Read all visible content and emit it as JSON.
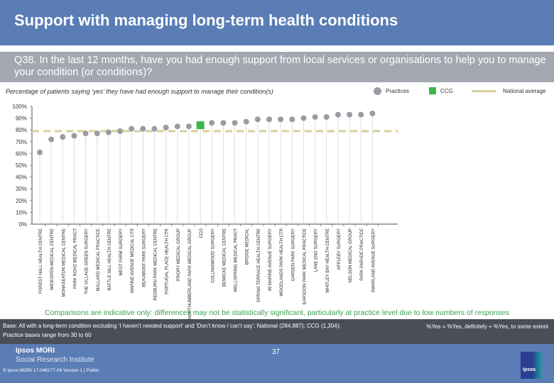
{
  "header": {
    "title": "Support with managing long-term health conditions"
  },
  "question": {
    "text": "Q38. In the last 12 months, have you had enough support from local services or organisations to help you to manage your condition (or conditions)?"
  },
  "subtitle": "Percentage of patients saying ‘yes’ they have had enough support to manage their condition(s)",
  "legend": {
    "practices": "Practices",
    "ccg": "CCG",
    "national": "National average"
  },
  "colors": {
    "practice_dot": "#9a9ca3",
    "ccg": "#3bb54a",
    "national_line": "#d9cf9a",
    "gridline": "#dddddd",
    "axis": "#888888"
  },
  "chart_data": {
    "type": "scatter",
    "title": "Percentage of patients saying ‘yes’ they have had enough support to manage their condition(s)",
    "xlabel": "",
    "ylabel": "",
    "ylim": [
      0,
      100
    ],
    "yticks": [
      "0%",
      "10%",
      "20%",
      "30%",
      "40%",
      "50%",
      "60%",
      "70%",
      "80%",
      "90%",
      "100%"
    ],
    "national_average": 79,
    "categories": [
      "FOREST HALL HEALTH CENTRE",
      "WIDEOPEN MEDICAL CENTRE",
      "MONKSEATON MEDICAL CENTRE",
      "PARK ROAD MEDICAL PRACT",
      "THE VILLAGE GREEN SURGERY",
      "MALLARD MEDICAL PRACTICE",
      "BATTLE HILL HEALTH CENTRE",
      "WEST FARM SURGERY",
      "MARINE AVENUE MEDICAL CTR",
      "BEAUMONT PARK SURGERY",
      "REDBURN PARK MEDICAL CENTRE",
      "PORTUGAL PLACE HEALTH CTR",
      "PRIORY MEDICAL GROUP",
      "NORTHUMBERLAND PARK MEDICAL GROUP",
      "CCG",
      "COLLINGWOOD SURGERY",
      "BEWICKE MEDICAL CENTRE",
      "WELLSPRING MEDICAL PRACT",
      "BRIDGE MEDICAL",
      "SPRING TERRACE HEALTH CENTRE",
      "49 MARINE AVENUE SURGERY",
      "WOODLANDS PARK HEALTH CTR",
      "GARDEN PARK SURGERY",
      "EARSDON PARK MEDICAL PRACTICE",
      "LANE END SURGERY",
      "WHITLEY BAY HEALTH CENTRE",
      "APPLEBY SURGERY",
      "NELSON MEDICAL GROUP",
      "PARK PARADE PRACTICE",
      "SWARLAND AVENUE SURGERY"
    ],
    "series": [
      {
        "name": "Practices",
        "values": [
          61,
          72,
          74,
          75,
          77,
          77,
          78,
          79,
          81,
          81,
          81,
          82,
          83,
          83,
          null,
          86,
          86,
          86,
          87,
          89,
          89,
          89,
          89,
          90,
          91,
          91,
          93,
          93,
          93,
          94
        ]
      },
      {
        "name": "CCG",
        "values": [
          null,
          null,
          null,
          null,
          null,
          null,
          null,
          null,
          null,
          null,
          null,
          null,
          null,
          null,
          84,
          null,
          null,
          null,
          null,
          null,
          null,
          null,
          null,
          null,
          null,
          null,
          null,
          null,
          null,
          null
        ]
      },
      {
        "name": "National average",
        "values": [
          79
        ]
      }
    ],
    "legend": "top-right",
    "grid": false
  },
  "footer": {
    "note": "Comparisons are indicative only: differences may not be statistically significant, particularly at practice level due to low numbers of responses",
    "base_line1": "Base: All with a long-term condition excluding ‘I haven’t needed support’ and ‘Don’t know / can’t say’: National (284,887); CCG (1,304);",
    "base_line2": "Practice bases range from 30 to 60",
    "yes_def": "%Yes = %Yes, definitely + %Yes, to some extent",
    "org_name": "Ipsos MORI",
    "org_sub": "Social Research Institute",
    "copyright": "© Ipsos MORI     17-048177-06 Version 1 | Public",
    "page": "37",
    "logo_text": "Ipsos"
  }
}
